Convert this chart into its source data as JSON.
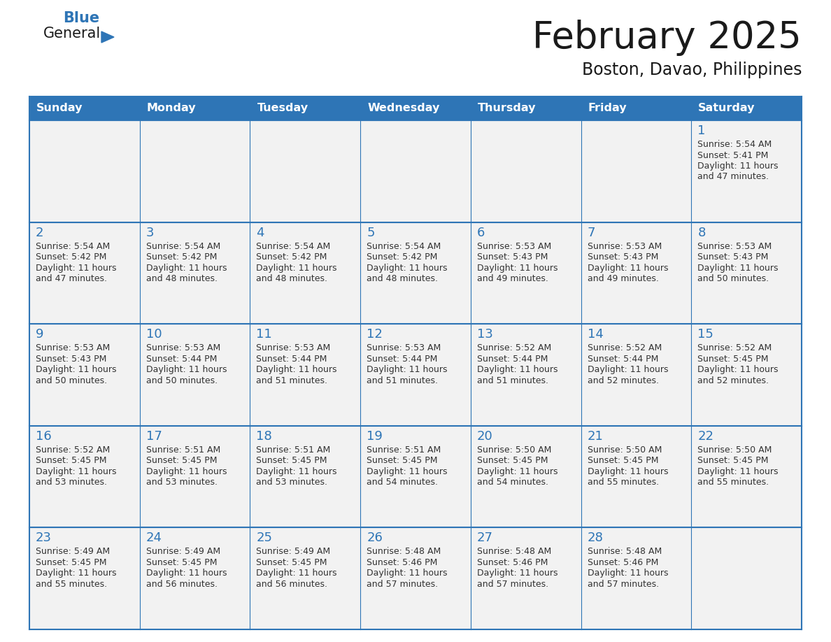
{
  "title": "February 2025",
  "subtitle": "Boston, Davao, Philippines",
  "days_of_week": [
    "Sunday",
    "Monday",
    "Tuesday",
    "Wednesday",
    "Thursday",
    "Friday",
    "Saturday"
  ],
  "header_color": "#2E75B6",
  "header_text_color": "#FFFFFF",
  "cell_bg_color": "#F2F2F2",
  "border_color": "#2E75B6",
  "day_num_color": "#2E75B6",
  "info_text_color": "#333333",
  "logo_general_color": "#1a1a1a",
  "logo_blue_color": "#2E75B6",
  "title_color": "#1a1a1a",
  "subtitle_color": "#1a1a1a",
  "page_bg_color": "#FFFFFF",
  "num_cols": 7,
  "num_rows": 5,
  "calendar": [
    [
      null,
      null,
      null,
      null,
      null,
      null,
      {
        "day": 1,
        "sunrise": "5:54 AM",
        "sunset": "5:41 PM",
        "daylight": "11 hours and 47 minutes."
      }
    ],
    [
      {
        "day": 2,
        "sunrise": "5:54 AM",
        "sunset": "5:42 PM",
        "daylight": "11 hours and 47 minutes."
      },
      {
        "day": 3,
        "sunrise": "5:54 AM",
        "sunset": "5:42 PM",
        "daylight": "11 hours and 48 minutes."
      },
      {
        "day": 4,
        "sunrise": "5:54 AM",
        "sunset": "5:42 PM",
        "daylight": "11 hours and 48 minutes."
      },
      {
        "day": 5,
        "sunrise": "5:54 AM",
        "sunset": "5:42 PM",
        "daylight": "11 hours and 48 minutes."
      },
      {
        "day": 6,
        "sunrise": "5:53 AM",
        "sunset": "5:43 PM",
        "daylight": "11 hours and 49 minutes."
      },
      {
        "day": 7,
        "sunrise": "5:53 AM",
        "sunset": "5:43 PM",
        "daylight": "11 hours and 49 minutes."
      },
      {
        "day": 8,
        "sunrise": "5:53 AM",
        "sunset": "5:43 PM",
        "daylight": "11 hours and 50 minutes."
      }
    ],
    [
      {
        "day": 9,
        "sunrise": "5:53 AM",
        "sunset": "5:43 PM",
        "daylight": "11 hours and 50 minutes."
      },
      {
        "day": 10,
        "sunrise": "5:53 AM",
        "sunset": "5:44 PM",
        "daylight": "11 hours and 50 minutes."
      },
      {
        "day": 11,
        "sunrise": "5:53 AM",
        "sunset": "5:44 PM",
        "daylight": "11 hours and 51 minutes."
      },
      {
        "day": 12,
        "sunrise": "5:53 AM",
        "sunset": "5:44 PM",
        "daylight": "11 hours and 51 minutes."
      },
      {
        "day": 13,
        "sunrise": "5:52 AM",
        "sunset": "5:44 PM",
        "daylight": "11 hours and 51 minutes."
      },
      {
        "day": 14,
        "sunrise": "5:52 AM",
        "sunset": "5:44 PM",
        "daylight": "11 hours and 52 minutes."
      },
      {
        "day": 15,
        "sunrise": "5:52 AM",
        "sunset": "5:45 PM",
        "daylight": "11 hours and 52 minutes."
      }
    ],
    [
      {
        "day": 16,
        "sunrise": "5:52 AM",
        "sunset": "5:45 PM",
        "daylight": "11 hours and 53 minutes."
      },
      {
        "day": 17,
        "sunrise": "5:51 AM",
        "sunset": "5:45 PM",
        "daylight": "11 hours and 53 minutes."
      },
      {
        "day": 18,
        "sunrise": "5:51 AM",
        "sunset": "5:45 PM",
        "daylight": "11 hours and 53 minutes."
      },
      {
        "day": 19,
        "sunrise": "5:51 AM",
        "sunset": "5:45 PM",
        "daylight": "11 hours and 54 minutes."
      },
      {
        "day": 20,
        "sunrise": "5:50 AM",
        "sunset": "5:45 PM",
        "daylight": "11 hours and 54 minutes."
      },
      {
        "day": 21,
        "sunrise": "5:50 AM",
        "sunset": "5:45 PM",
        "daylight": "11 hours and 55 minutes."
      },
      {
        "day": 22,
        "sunrise": "5:50 AM",
        "sunset": "5:45 PM",
        "daylight": "11 hours and 55 minutes."
      }
    ],
    [
      {
        "day": 23,
        "sunrise": "5:49 AM",
        "sunset": "5:45 PM",
        "daylight": "11 hours and 55 minutes."
      },
      {
        "day": 24,
        "sunrise": "5:49 AM",
        "sunset": "5:45 PM",
        "daylight": "11 hours and 56 minutes."
      },
      {
        "day": 25,
        "sunrise": "5:49 AM",
        "sunset": "5:45 PM",
        "daylight": "11 hours and 56 minutes."
      },
      {
        "day": 26,
        "sunrise": "5:48 AM",
        "sunset": "5:46 PM",
        "daylight": "11 hours and 57 minutes."
      },
      {
        "day": 27,
        "sunrise": "5:48 AM",
        "sunset": "5:46 PM",
        "daylight": "11 hours and 57 minutes."
      },
      {
        "day": 28,
        "sunrise": "5:48 AM",
        "sunset": "5:46 PM",
        "daylight": "11 hours and 57 minutes."
      },
      null
    ]
  ]
}
